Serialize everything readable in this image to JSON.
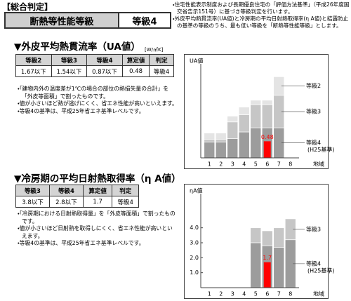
{
  "header": {
    "title": "【総合判定】",
    "label": "断熱等性能等級",
    "grade": "等級4"
  },
  "notes": [
    "・住宅性能表示制度および長期優良住宅の「評価方法基準」（平成26年度国交省告示151号）に基づき等級判定を行います。",
    "・外皮平均熱貫流率(UA値)と冷房期の平均日射熱取得率(η A値)と結露防止の基準の等級のうち、最も低い等級を「断熱等性能等級」とします。"
  ],
  "sections": [
    {
      "heading": "▼外皮平均熱貫流率（UA値）",
      "unit": "[W/㎡K]",
      "table": {
        "columns": [
          "等級2",
          "等級3",
          "等級4",
          "算定値",
          "判定"
        ],
        "row": [
          "1.67以下",
          "1.54以下",
          "0.87以下",
          "0.48",
          "等級4"
        ]
      },
      "notes": [
        "・「建物内外の温度差が1℃の場合の部位の熱損失量の合計」を「外皮等面積」で割ったものです。",
        "・値が小さいほど熱が逃げにくく、省エネ性能が高いといえます。",
        "・等級4の基準は、平成25年省エネ基準レベルです。"
      ]
    },
    {
      "heading": "▼冷房期の平均日射熱取得率（η A値）",
      "table": {
        "columns": [
          "等級3",
          "等級4",
          "算定値",
          "判定"
        ],
        "row": [
          "3.8以下",
          "2.8以下",
          "1.7",
          "等級4"
        ]
      },
      "notes": [
        "・「冷房期における日射熱取得量」を「外皮等面積」で割ったものです。",
        "・値が小さいほど日射熱を取得しにくく、省エネ性能が高いといえます。",
        "・等級4の基準は、平成25年省エネ基準レベルです。"
      ]
    }
  ],
  "chart_data": [
    {
      "type": "bar",
      "y_label": "UA値",
      "x_label": "地域",
      "note": "(H25基準)",
      "categories": [
        "1",
        "2",
        "3",
        "4",
        "5",
        "6",
        "7",
        "8"
      ],
      "ylim": [
        0,
        2.6
      ],
      "series": [
        {
          "name": "等級2",
          "color": "#e4e4e4",
          "values": [
            0.72,
            0.72,
            1.21,
            1.47,
            1.67,
            1.67,
            2.35,
            null
          ]
        },
        {
          "name": "等級3",
          "color": "#c6c6c6",
          "values": [
            0.54,
            0.54,
            1.04,
            1.25,
            1.54,
            1.54,
            1.81,
            null
          ]
        },
        {
          "name": "等級4",
          "color": "#9c9c9c",
          "values": [
            0.46,
            0.46,
            0.56,
            0.75,
            0.87,
            0.87,
            0.87,
            null
          ]
        },
        {
          "color": "#ff0000",
          "values": [
            null,
            null,
            null,
            null,
            null,
            0.48,
            null,
            null
          ]
        }
      ]
    },
    {
      "type": "bar",
      "y_label": "ηA値",
      "x_label": "地域",
      "note": "(H25基準)",
      "categories": [
        "1",
        "2",
        "3",
        "4",
        "5",
        "6",
        "7",
        "8"
      ],
      "ylim": [
        0,
        6
      ],
      "yticks": [
        {
          "value": 1,
          "label": "1.0"
        },
        {
          "value": 2,
          "label": "2.0"
        },
        {
          "value": 3,
          "label": "3.0"
        },
        {
          "value": 4,
          "label": "4.0"
        }
      ],
      "series": [
        {
          "name": "等級3",
          "color": "#c6c6c6",
          "values": [
            null,
            null,
            null,
            null,
            4.0,
            3.8,
            4.0,
            4.6
          ]
        },
        {
          "name": "等級4",
          "color": "#9c9c9c",
          "values": [
            null,
            null,
            null,
            null,
            3.0,
            2.8,
            2.7,
            3.2
          ]
        },
        {
          "color": "#ff0000",
          "values": [
            null,
            null,
            null,
            null,
            null,
            1.7,
            null,
            null
          ]
        }
      ]
    }
  ]
}
